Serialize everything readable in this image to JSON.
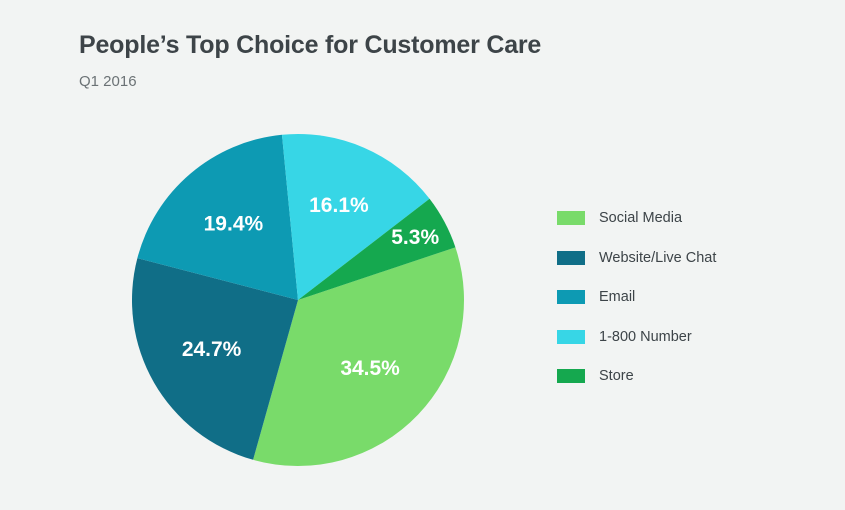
{
  "title": "People’s Top Choice for Customer Care",
  "subtitle": "Q1 2016",
  "chart_data": {
    "type": "pie",
    "title": "People’s Top Choice for Customer Care",
    "subtitle": "Q1 2016",
    "legend_position": "right",
    "slices": [
      {
        "name": "Social Media",
        "value": 34.5,
        "label": "34.5%",
        "color": "#79db6a"
      },
      {
        "name": "Website/Live Chat",
        "value": 24.7,
        "label": "24.7%",
        "color": "#106e87"
      },
      {
        "name": "Email",
        "value": 19.4,
        "label": "19.4%",
        "color": "#0d9ab3"
      },
      {
        "name": "1-800 Number",
        "value": 16.1,
        "label": "16.1%",
        "color": "#37d6e6"
      },
      {
        "name": "Store",
        "value": 5.3,
        "label": "5.3%",
        "color": "#15a84f"
      }
    ]
  }
}
